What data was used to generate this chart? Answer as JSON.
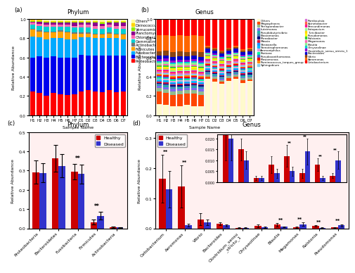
{
  "phylum_samples": [
    "H1",
    "H2",
    "H3",
    "H4",
    "H5",
    "H6",
    "H7",
    "D1",
    "D2",
    "D3",
    "D4",
    "D5",
    "D6",
    "D7"
  ],
  "phylum_taxa_ordered": [
    "Proteobacteria",
    "Bacteroidetes",
    "Fusobacteria",
    "Firmicutes",
    "Actinobacteria",
    "Gemmatimonadetes",
    "Chloroflexi",
    "Planctomycetes",
    "Verrucomicrobia",
    "Deinococcus-Thermus",
    "Others"
  ],
  "phylum_colors": [
    "#FF0000",
    "#0000EE",
    "#00AAFF",
    "#FFA500",
    "#777777",
    "#00CED1",
    "#FF69B4",
    "#8B008B",
    "#90EE00",
    "#FFD700",
    "#FFFF99"
  ],
  "phylum_data": [
    [
      0.25,
      0.23,
      0.2,
      0.23,
      0.22,
      0.21,
      0.22,
      0.25,
      0.26,
      0.25,
      0.24,
      0.26,
      0.24,
      0.25
    ],
    [
      0.35,
      0.38,
      0.4,
      0.38,
      0.38,
      0.39,
      0.38,
      0.38,
      0.36,
      0.37,
      0.38,
      0.36,
      0.38,
      0.37
    ],
    [
      0.22,
      0.2,
      0.19,
      0.19,
      0.2,
      0.19,
      0.19,
      0.18,
      0.19,
      0.18,
      0.18,
      0.18,
      0.18,
      0.17
    ],
    [
      0.07,
      0.06,
      0.07,
      0.06,
      0.07,
      0.07,
      0.06,
      0.04,
      0.04,
      0.04,
      0.04,
      0.05,
      0.04,
      0.05
    ],
    [
      0.01,
      0.01,
      0.01,
      0.01,
      0.01,
      0.01,
      0.01,
      0.01,
      0.01,
      0.01,
      0.01,
      0.01,
      0.01,
      0.01
    ],
    [
      0.04,
      0.05,
      0.05,
      0.05,
      0.04,
      0.05,
      0.05,
      0.05,
      0.05,
      0.05,
      0.05,
      0.05,
      0.05,
      0.05
    ],
    [
      0.02,
      0.02,
      0.02,
      0.02,
      0.02,
      0.02,
      0.02,
      0.03,
      0.03,
      0.03,
      0.03,
      0.03,
      0.03,
      0.03
    ],
    [
      0.01,
      0.02,
      0.02,
      0.02,
      0.02,
      0.02,
      0.03,
      0.02,
      0.02,
      0.03,
      0.02,
      0.02,
      0.03,
      0.03
    ],
    [
      0.01,
      0.01,
      0.01,
      0.01,
      0.01,
      0.01,
      0.01,
      0.01,
      0.01,
      0.01,
      0.01,
      0.01,
      0.01,
      0.01
    ],
    [
      0.01,
      0.01,
      0.01,
      0.01,
      0.01,
      0.01,
      0.01,
      0.01,
      0.01,
      0.01,
      0.01,
      0.01,
      0.01,
      0.01
    ],
    [
      0.01,
      0.01,
      0.02,
      0.02,
      0.02,
      0.02,
      0.02,
      0.02,
      0.02,
      0.02,
      0.03,
      0.02,
      0.02,
      0.02
    ]
  ],
  "genus_samples": [
    "H1",
    "H2",
    "H3",
    "H4",
    "H5",
    "H6",
    "H7",
    "D1",
    "D2",
    "D3",
    "D4",
    "D5",
    "D6",
    "D7"
  ],
  "genus_taxa_legend": [
    "Others",
    "Megasphaera",
    "Terrisporobacter",
    "Luteimonas",
    "Pseudobutyrivibrio",
    "Blastomonas",
    "Phreabacter",
    "Massia",
    "Shewanella",
    "Stenotrophomonas",
    "Ammoniphilus",
    "Pantoea",
    "Pseudoxanthomonas",
    "Plesiomonas",
    "Ruminococcus_torques_group",
    "Sphingobium",
    "Romboutsia",
    "Acinetobacter",
    "Brevundimonas",
    "Eutopacium",
    "Turicibacter",
    "Pseudomonas",
    "Ralstonia",
    "Megamonas",
    "Blautia",
    "Chryseolinae",
    "Clostridium_sensu_stricto_1",
    "Bacteroides",
    "Vibrio",
    "Aeromonas",
    "Cetobacterium"
  ],
  "genus_colors_ordered": [
    "#FFFACD",
    "#FF4500",
    "#8FBC8F",
    "#7B68EE",
    "#20B2AA",
    "#4682B4",
    "#000080",
    "#DC143C",
    "#1E90FF",
    "#00BFFF",
    "#DDA0DD",
    "#00FA9A",
    "#4169E1",
    "#FF0000",
    "#FF8C00",
    "#87CEEB",
    "#DA70D6",
    "#FF6347",
    "#FF1493",
    "#98FB98",
    "#FFD700",
    "#FFFF00",
    "#32CD32",
    "#FF69B4",
    "#90EE90",
    "#00CED1",
    "#9400D3",
    "#0000CD",
    "#8B4513",
    "#FF6600",
    "#FF0000"
  ],
  "genus_data": [
    [
      0.1,
      0.09,
      0.08,
      0.08,
      0.09,
      0.08,
      0.08,
      0.38,
      0.35,
      0.32,
      0.36,
      0.38,
      0.34,
      0.35
    ],
    [
      0.12,
      0.11,
      0.1,
      0.1,
      0.1,
      0.11,
      0.1,
      0.02,
      0.03,
      0.02,
      0.03,
      0.02,
      0.03,
      0.02
    ],
    [
      0.03,
      0.03,
      0.03,
      0.03,
      0.03,
      0.03,
      0.03,
      0.02,
      0.02,
      0.02,
      0.02,
      0.02,
      0.02,
      0.02
    ],
    [
      0.02,
      0.02,
      0.02,
      0.02,
      0.02,
      0.02,
      0.02,
      0.01,
      0.01,
      0.01,
      0.01,
      0.01,
      0.01,
      0.01
    ],
    [
      0.01,
      0.01,
      0.01,
      0.01,
      0.01,
      0.01,
      0.01,
      0.01,
      0.01,
      0.01,
      0.01,
      0.01,
      0.01,
      0.01
    ],
    [
      0.01,
      0.01,
      0.01,
      0.01,
      0.01,
      0.01,
      0.01,
      0.01,
      0.01,
      0.01,
      0.01,
      0.01,
      0.01,
      0.01
    ],
    [
      0.01,
      0.01,
      0.01,
      0.01,
      0.01,
      0.01,
      0.01,
      0.01,
      0.01,
      0.01,
      0.01,
      0.01,
      0.01,
      0.01
    ],
    [
      0.01,
      0.01,
      0.01,
      0.01,
      0.01,
      0.01,
      0.01,
      0.01,
      0.01,
      0.01,
      0.01,
      0.01,
      0.01,
      0.01
    ],
    [
      0.01,
      0.01,
      0.01,
      0.01,
      0.01,
      0.01,
      0.01,
      0.01,
      0.01,
      0.01,
      0.01,
      0.01,
      0.01,
      0.01
    ],
    [
      0.01,
      0.01,
      0.01,
      0.01,
      0.01,
      0.01,
      0.01,
      0.01,
      0.01,
      0.01,
      0.01,
      0.01,
      0.01,
      0.01
    ],
    [
      0.01,
      0.01,
      0.01,
      0.01,
      0.01,
      0.01,
      0.01,
      0.01,
      0.01,
      0.01,
      0.01,
      0.01,
      0.01,
      0.01
    ],
    [
      0.01,
      0.01,
      0.01,
      0.01,
      0.01,
      0.01,
      0.01,
      0.01,
      0.01,
      0.01,
      0.01,
      0.01,
      0.01,
      0.01
    ],
    [
      0.01,
      0.01,
      0.01,
      0.01,
      0.01,
      0.01,
      0.01,
      0.01,
      0.01,
      0.01,
      0.01,
      0.01,
      0.01,
      0.01
    ],
    [
      0.01,
      0.01,
      0.01,
      0.01,
      0.01,
      0.01,
      0.01,
      0.01,
      0.01,
      0.01,
      0.01,
      0.01,
      0.01,
      0.01
    ],
    [
      0.01,
      0.01,
      0.01,
      0.01,
      0.01,
      0.01,
      0.01,
      0.01,
      0.01,
      0.01,
      0.01,
      0.01,
      0.01,
      0.01
    ],
    [
      0.01,
      0.01,
      0.01,
      0.01,
      0.01,
      0.01,
      0.01,
      0.01,
      0.01,
      0.01,
      0.01,
      0.01,
      0.01,
      0.01
    ],
    [
      0.01,
      0.01,
      0.01,
      0.01,
      0.01,
      0.01,
      0.01,
      0.01,
      0.01,
      0.01,
      0.01,
      0.01,
      0.01,
      0.01
    ],
    [
      0.01,
      0.01,
      0.01,
      0.01,
      0.01,
      0.01,
      0.01,
      0.01,
      0.01,
      0.01,
      0.01,
      0.01,
      0.01,
      0.01
    ],
    [
      0.01,
      0.01,
      0.01,
      0.01,
      0.01,
      0.01,
      0.01,
      0.01,
      0.01,
      0.01,
      0.01,
      0.01,
      0.01,
      0.01
    ],
    [
      0.01,
      0.01,
      0.01,
      0.01,
      0.01,
      0.01,
      0.01,
      0.01,
      0.01,
      0.01,
      0.01,
      0.01,
      0.01,
      0.01
    ],
    [
      0.01,
      0.01,
      0.01,
      0.01,
      0.01,
      0.01,
      0.01,
      0.01,
      0.01,
      0.01,
      0.01,
      0.01,
      0.01,
      0.01
    ],
    [
      0.01,
      0.01,
      0.01,
      0.01,
      0.01,
      0.01,
      0.01,
      0.01,
      0.01,
      0.01,
      0.01,
      0.01,
      0.01,
      0.01
    ],
    [
      0.01,
      0.01,
      0.01,
      0.01,
      0.01,
      0.01,
      0.01,
      0.01,
      0.01,
      0.01,
      0.01,
      0.01,
      0.01,
      0.01
    ],
    [
      0.01,
      0.01,
      0.01,
      0.01,
      0.01,
      0.01,
      0.01,
      0.01,
      0.01,
      0.01,
      0.01,
      0.01,
      0.01,
      0.01
    ],
    [
      0.02,
      0.02,
      0.02,
      0.02,
      0.02,
      0.02,
      0.02,
      0.01,
      0.01,
      0.01,
      0.01,
      0.01,
      0.01,
      0.01
    ],
    [
      0.01,
      0.01,
      0.01,
      0.01,
      0.01,
      0.01,
      0.01,
      0.01,
      0.01,
      0.01,
      0.01,
      0.01,
      0.01,
      0.01
    ],
    [
      0.02,
      0.02,
      0.02,
      0.02,
      0.02,
      0.02,
      0.02,
      0.01,
      0.01,
      0.01,
      0.01,
      0.01,
      0.01,
      0.01
    ],
    [
      0.03,
      0.03,
      0.03,
      0.03,
      0.03,
      0.03,
      0.03,
      0.03,
      0.03,
      0.03,
      0.03,
      0.03,
      0.03,
      0.03
    ],
    [
      0.04,
      0.04,
      0.04,
      0.04,
      0.04,
      0.04,
      0.04,
      0.02,
      0.02,
      0.02,
      0.02,
      0.02,
      0.02,
      0.02
    ],
    [
      0.15,
      0.14,
      0.14,
      0.14,
      0.14,
      0.14,
      0.14,
      0.01,
      0.01,
      0.01,
      0.01,
      0.01,
      0.01,
      0.01
    ],
    [
      0.15,
      0.14,
      0.15,
      0.14,
      0.15,
      0.14,
      0.15,
      0.28,
      0.3,
      0.32,
      0.3,
      0.28,
      0.32,
      0.3
    ]
  ],
  "phylum_bar_categories": [
    "Proteobacteria",
    "Bacteroidetes",
    "Fusobacteria",
    "Firmicutes",
    "Actinobacteria"
  ],
  "phylum_bar_healthy_mean": [
    0.292,
    0.365,
    0.295,
    0.033,
    0.005
  ],
  "phylum_bar_healthy_err": [
    0.06,
    0.07,
    0.04,
    0.012,
    0.003
  ],
  "phylum_bar_diseased_mean": [
    0.288,
    0.325,
    0.282,
    0.065,
    0.005
  ],
  "phylum_bar_diseased_err": [
    0.05,
    0.06,
    0.05,
    0.02,
    0.002
  ],
  "phylum_bar_sig": [
    "",
    "",
    "**",
    "**",
    ""
  ],
  "genus_bar_categories": [
    "Cetobacterium",
    "Aeromonas",
    "Vibrio",
    "Bacteroides",
    "Clostridium_sensu\n_stricto_1",
    "Chryseolinae",
    "Blautia",
    "Megamonas",
    "Ralstonia",
    "Pseudomonas"
  ],
  "genus_bar_healthy_mean": [
    0.165,
    0.14,
    0.03,
    0.015,
    0.002,
    0.008,
    0.012,
    0.004,
    0.008,
    0.003
  ],
  "genus_bar_healthy_err": [
    0.08,
    0.07,
    0.02,
    0.005,
    0.001,
    0.004,
    0.005,
    0.002,
    0.003,
    0.001
  ],
  "genus_bar_diseased_mean": [
    0.13,
    0.01,
    0.02,
    0.01,
    0.002,
    0.004,
    0.005,
    0.014,
    0.002,
    0.01
  ],
  "genus_bar_diseased_err": [
    0.06,
    0.005,
    0.01,
    0.004,
    0.001,
    0.002,
    0.002,
    0.006,
    0.001,
    0.004
  ],
  "genus_bar_sig": [
    "**",
    "**",
    "",
    "",
    "",
    "",
    "**",
    "**",
    "**",
    "**"
  ],
  "healthy_color": "#CC0000",
  "diseased_color": "#3333CC",
  "bg_color": "#FFF0F0"
}
